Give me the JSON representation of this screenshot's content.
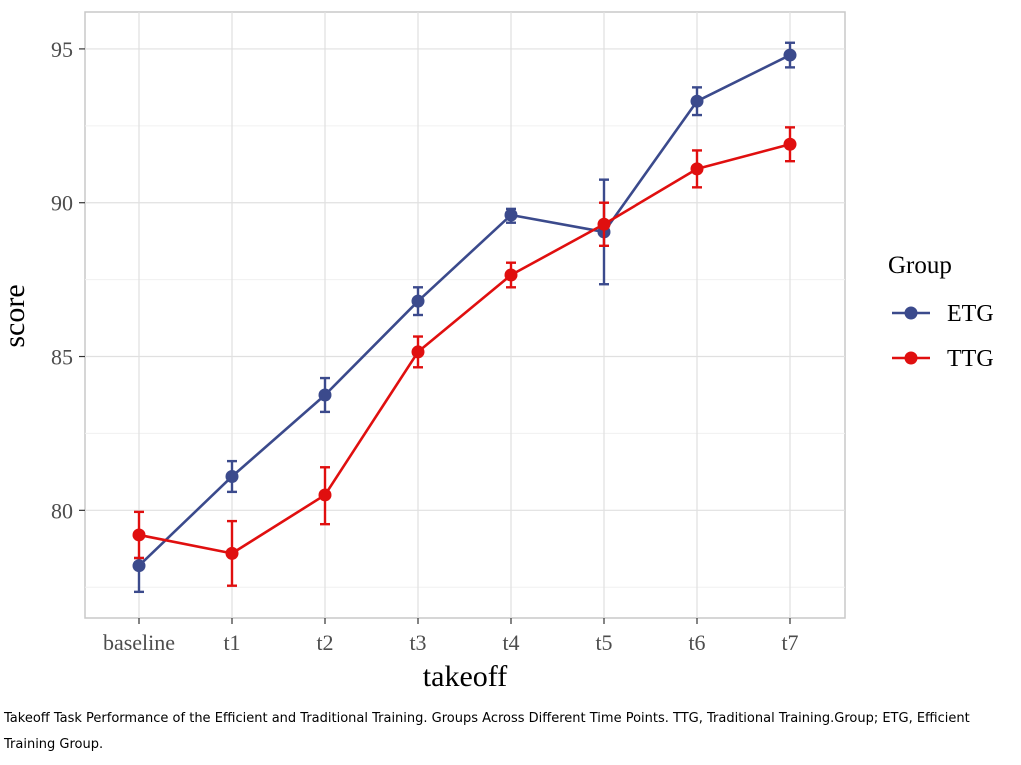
{
  "caption": "Takeoff Task Performance of the Efficient and Traditional Training. Groups Across Different Time Points. TTG, Traditional Training.Group; ETG, Efficient Training Group.",
  "chart_data": {
    "type": "line",
    "xlabel": "takeoff",
    "ylabel": "score",
    "categories": [
      "baseline",
      "t1",
      "t2",
      "t3",
      "t4",
      "t5",
      "t6",
      "t7"
    ],
    "ylim": [
      76.5,
      96.2
    ],
    "yticks": [
      80,
      85,
      90,
      95
    ],
    "grid": true,
    "legend": {
      "title": "Group",
      "placement": "right"
    },
    "series": [
      {
        "name": "ETG",
        "color": "#3b4a8c",
        "values": [
          78.2,
          81.1,
          83.75,
          86.8,
          89.6,
          89.05,
          93.3,
          94.8
        ],
        "err_low": [
          77.35,
          80.6,
          83.2,
          86.35,
          89.35,
          87.35,
          92.85,
          94.4
        ],
        "err_high": [
          78.45,
          81.6,
          84.3,
          87.25,
          89.8,
          90.75,
          93.75,
          95.2
        ]
      },
      {
        "name": "TTG",
        "color": "#e00f0f",
        "values": [
          79.2,
          78.6,
          80.5,
          85.15,
          87.65,
          89.3,
          91.1,
          91.9
        ],
        "err_low": [
          78.45,
          77.55,
          79.55,
          84.65,
          87.25,
          88.6,
          90.5,
          91.35
        ],
        "err_high": [
          79.95,
          79.65,
          81.4,
          85.65,
          88.05,
          90.0,
          91.7,
          92.45
        ]
      }
    ]
  }
}
